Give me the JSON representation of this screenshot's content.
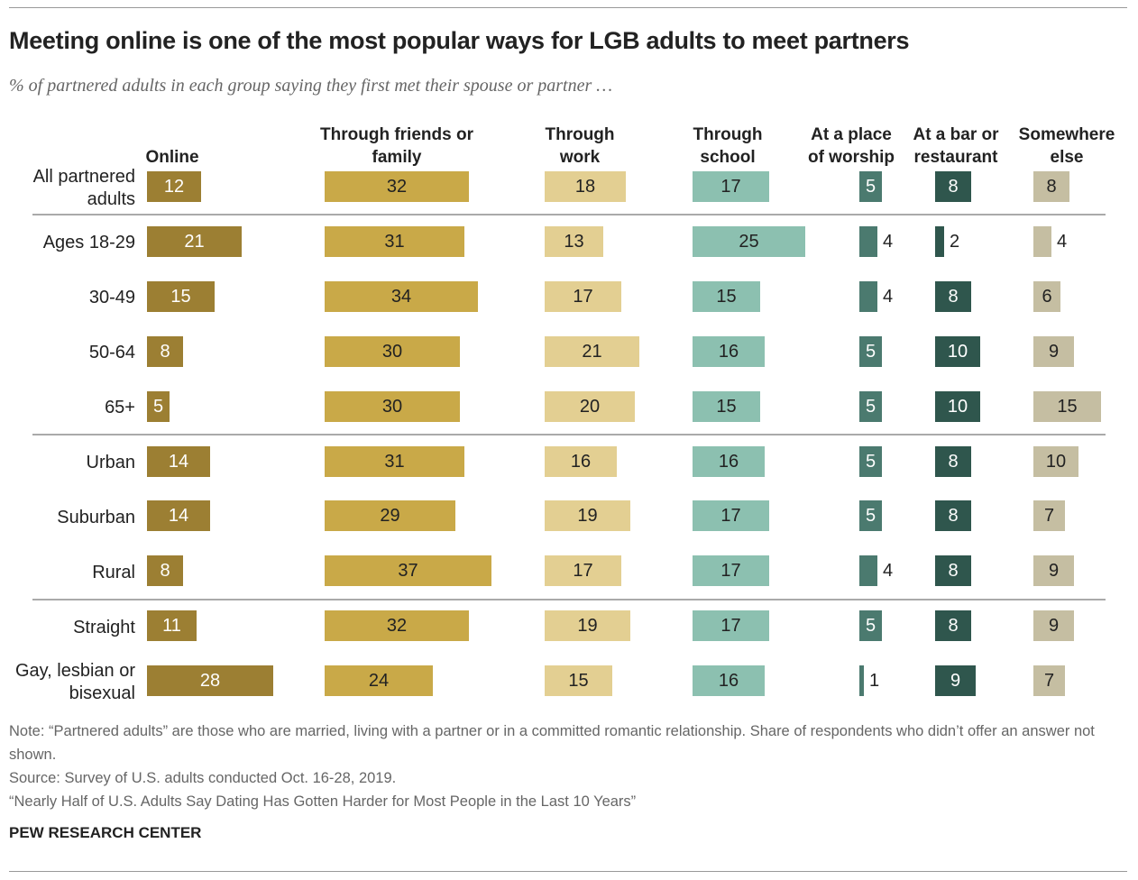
{
  "chart_data": {
    "type": "bar",
    "title": "Meeting online is one of the most popular ways for LGB adults to meet partners",
    "subtitle": "% of partnered adults in each group saying they first met their spouse or partner …",
    "categories": [
      "All partnered adults",
      "Ages 18-29",
      "30-49",
      "50-64",
      "65+",
      "Urban",
      "Suburban",
      "Rural",
      "Straight",
      "Gay, lesbian or bisexual"
    ],
    "series": [
      {
        "name": "Online",
        "color": "#9c7f33",
        "values": [
          12,
          21,
          15,
          8,
          5,
          14,
          14,
          8,
          11,
          28
        ]
      },
      {
        "name": "Through friends or family",
        "color": "#c9a948",
        "values": [
          32,
          31,
          34,
          30,
          30,
          31,
          29,
          37,
          32,
          24
        ]
      },
      {
        "name": "Through work",
        "color": "#e3cf92",
        "values": [
          18,
          13,
          17,
          21,
          20,
          16,
          19,
          17,
          19,
          15
        ]
      },
      {
        "name": "Through school",
        "color": "#8cc0b0",
        "values": [
          17,
          25,
          15,
          16,
          15,
          16,
          17,
          17,
          17,
          16
        ]
      },
      {
        "name": "At a place of worship",
        "color": "#4b7a6f",
        "values": [
          5,
          4,
          4,
          5,
          5,
          5,
          5,
          4,
          5,
          1
        ]
      },
      {
        "name": "At a bar or restaurant",
        "color": "#2f564d",
        "values": [
          8,
          2,
          8,
          10,
          10,
          8,
          8,
          8,
          8,
          9
        ]
      },
      {
        "name": "Somewhere else",
        "color": "#c5bea2",
        "values": [
          8,
          4,
          6,
          9,
          15,
          10,
          7,
          9,
          9,
          7
        ]
      }
    ],
    "note": "Note: “Partnered adults” are those who are married, living with a partner or in a committed romantic relationship. Share of respondents who didn’t offer an answer not shown.",
    "source": "Source: Survey of U.S. adults conducted Oct. 16-28, 2019.",
    "report": "“Nearly Half of U.S. Adults Say Dating Has Gotten Harder for Most People in the Last 10 Years”",
    "footer": "PEW RESEARCH CENTER"
  }
}
